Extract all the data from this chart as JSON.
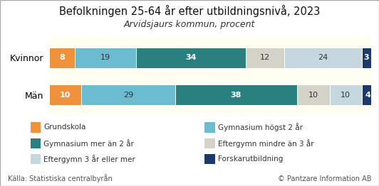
{
  "title": "Befolkningen 25-64 år efter utbildningsnivå, 2023",
  "subtitle": "Arvidsjaurs kommun, procent",
  "categories": [
    "Kvinnor",
    "Män"
  ],
  "series": [
    {
      "label": "Grundskola",
      "color": "#f0923b",
      "values": [
        8,
        10
      ]
    },
    {
      "label": "Gymnasium högst 2 år",
      "color": "#6bbcd0",
      "values": [
        19,
        29
      ]
    },
    {
      "label": "Gymnasium mer än 2 år",
      "color": "#2a7f7f",
      "values": [
        34,
        38
      ]
    },
    {
      "label": "Eftergymn mindre än 3 år",
      "color": "#d3d3c8",
      "values": [
        12,
        10
      ]
    },
    {
      "label": "Eftergymn 3 år eller mer",
      "color": "#c5d8e0",
      "values": [
        24,
        10
      ]
    },
    {
      "label": "Forskarutbildning",
      "color": "#1a3a6b",
      "values": [
        3,
        4
      ]
    }
  ],
  "legend_col1": [
    0,
    2,
    4
  ],
  "legend_col2": [
    1,
    3,
    5
  ],
  "source_left": "Källa: Statistiska centralbyrån",
  "source_right": "© Pantzare Information AB",
  "bg_color": "#fffef0",
  "bar_height": 0.55,
  "text_colors": {
    "#f0923b": "white",
    "#6bbcd0": "#333333",
    "#2a7f7f": "white",
    "#d3d3c8": "#333333",
    "#c5d8e0": "#333333",
    "#1a3a6b": "white"
  },
  "bold_colors": [
    "#f0923b",
    "#2a7f7f",
    "#1a3a6b"
  ]
}
